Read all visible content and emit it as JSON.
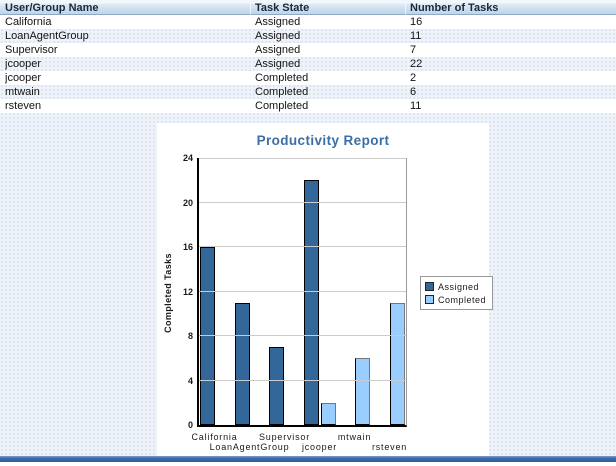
{
  "table": {
    "columns": [
      "User/Group Name",
      "Task State",
      "Number of Tasks"
    ],
    "rows": [
      [
        "California",
        "Assigned",
        "16"
      ],
      [
        "LoanAgentGroup",
        "Assigned",
        "11"
      ],
      [
        "Supervisor",
        "Assigned",
        "7"
      ],
      [
        "jcooper",
        "Assigned",
        "22"
      ],
      [
        "jcooper",
        "Completed",
        "2"
      ],
      [
        "mtwain",
        "Completed",
        "6"
      ],
      [
        "rsteven",
        "Completed",
        "11"
      ]
    ]
  },
  "chart_data": {
    "type": "bar",
    "title": "Productivity Report",
    "ylabel": "Completed Tasks",
    "xlabel": "",
    "categories": [
      "California",
      "LoanAgentGroup",
      "Supervisor",
      "jcooper",
      "mtwain",
      "rsteven"
    ],
    "series": [
      {
        "name": "Assigned",
        "color": "#336699",
        "values": [
          16,
          11,
          7,
          22,
          null,
          null
        ]
      },
      {
        "name": "Completed",
        "color": "#99ccff",
        "values": [
          null,
          null,
          null,
          2,
          6,
          11
        ]
      }
    ],
    "ylim": [
      0,
      24
    ],
    "ytick_step": 4,
    "grid": true,
    "legend_position": "right"
  },
  "colors": {
    "assigned": "#336699",
    "completed": "#99ccff",
    "title": "#3a6ea5",
    "gridline": "#cccccc",
    "footer": "#3b6aa8"
  }
}
